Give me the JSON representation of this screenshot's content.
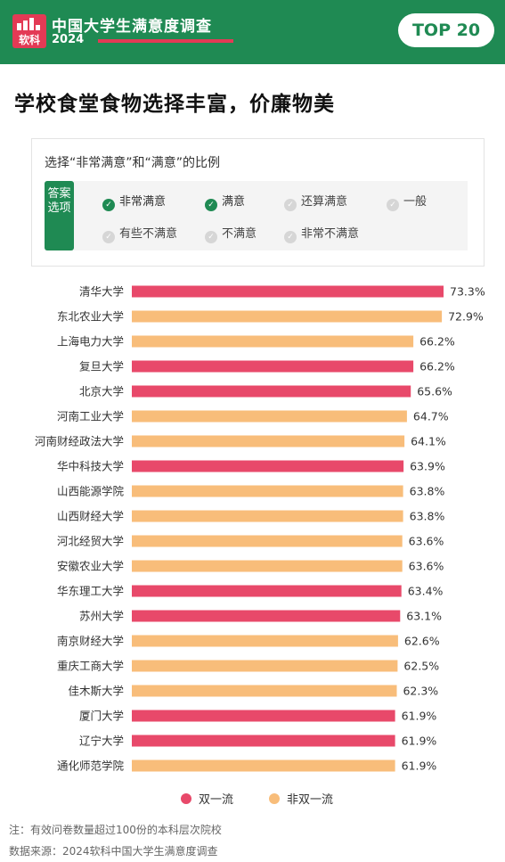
{
  "header": {
    "logo_text": "软科",
    "brand_title": "中国大学生满意度调查",
    "brand_year": "2024",
    "badge": "TOP 20"
  },
  "headline": "学校食堂食物选择丰富，价廉物美",
  "legend_box": {
    "title": "选择“非常满意”和“满意”的比例",
    "answer_label": "答案选项",
    "options": [
      {
        "label": "非常满意",
        "checked": true
      },
      {
        "label": "满意",
        "checked": true
      },
      {
        "label": "还算满意",
        "checked": false
      },
      {
        "label": "一般",
        "checked": false
      },
      {
        "label": "有些不满意",
        "checked": false
      },
      {
        "label": "不满意",
        "checked": false
      },
      {
        "label": "非常不满意",
        "checked": false
      }
    ]
  },
  "colors": {
    "green": "#1f8a53",
    "red": "#e8496a",
    "orange": "#f8bd7a"
  },
  "chart_data": {
    "type": "bar",
    "orientation": "horizontal",
    "categories": [
      "清华大学",
      "东北农业大学",
      "上海电力大学",
      "复旦大学",
      "北京大学",
      "河南工业大学",
      "河南财经政法大学",
      "华中科技大学",
      "山西能源学院",
      "山西财经大学",
      "河北经贸大学",
      "安徽农业大学",
      "华东理工大学",
      "苏州大学",
      "南京财经大学",
      "重庆工商大学",
      "佳木斯大学",
      "厦门大学",
      "辽宁大学",
      "通化师范学院"
    ],
    "values": [
      73.3,
      72.9,
      66.2,
      66.2,
      65.6,
      64.7,
      64.1,
      63.9,
      63.8,
      63.8,
      63.6,
      63.6,
      63.4,
      63.1,
      62.6,
      62.5,
      62.3,
      61.9,
      61.9,
      61.9
    ],
    "value_labels": [
      "73.3%",
      "72.9%",
      "66.2%",
      "66.2%",
      "65.6%",
      "64.7%",
      "64.1%",
      "63.9%",
      "63.8%",
      "63.8%",
      "63.6%",
      "63.6%",
      "63.4%",
      "63.1%",
      "62.6%",
      "62.5%",
      "62.3%",
      "61.9%",
      "61.9%",
      "61.9%"
    ],
    "group": [
      "双一流",
      "非双一流",
      "非双一流",
      "双一流",
      "双一流",
      "非双一流",
      "非双一流",
      "双一流",
      "非双一流",
      "非双一流",
      "非双一流",
      "非双一流",
      "双一流",
      "双一流",
      "非双一流",
      "非双一流",
      "非双一流",
      "双一流",
      "双一流",
      "非双一流"
    ],
    "legend": [
      {
        "name": "双一流",
        "color": "#e8496a"
      },
      {
        "name": "非双一流",
        "color": "#f8bd7a"
      }
    ],
    "xlim": [
      0,
      73.3
    ],
    "grid": false,
    "legend_position": "bottom"
  },
  "notes": {
    "note": "注：有效问卷数量超过100份的本科层次院校",
    "source": "数据来源：2024软科中国大学生满意度调查"
  }
}
